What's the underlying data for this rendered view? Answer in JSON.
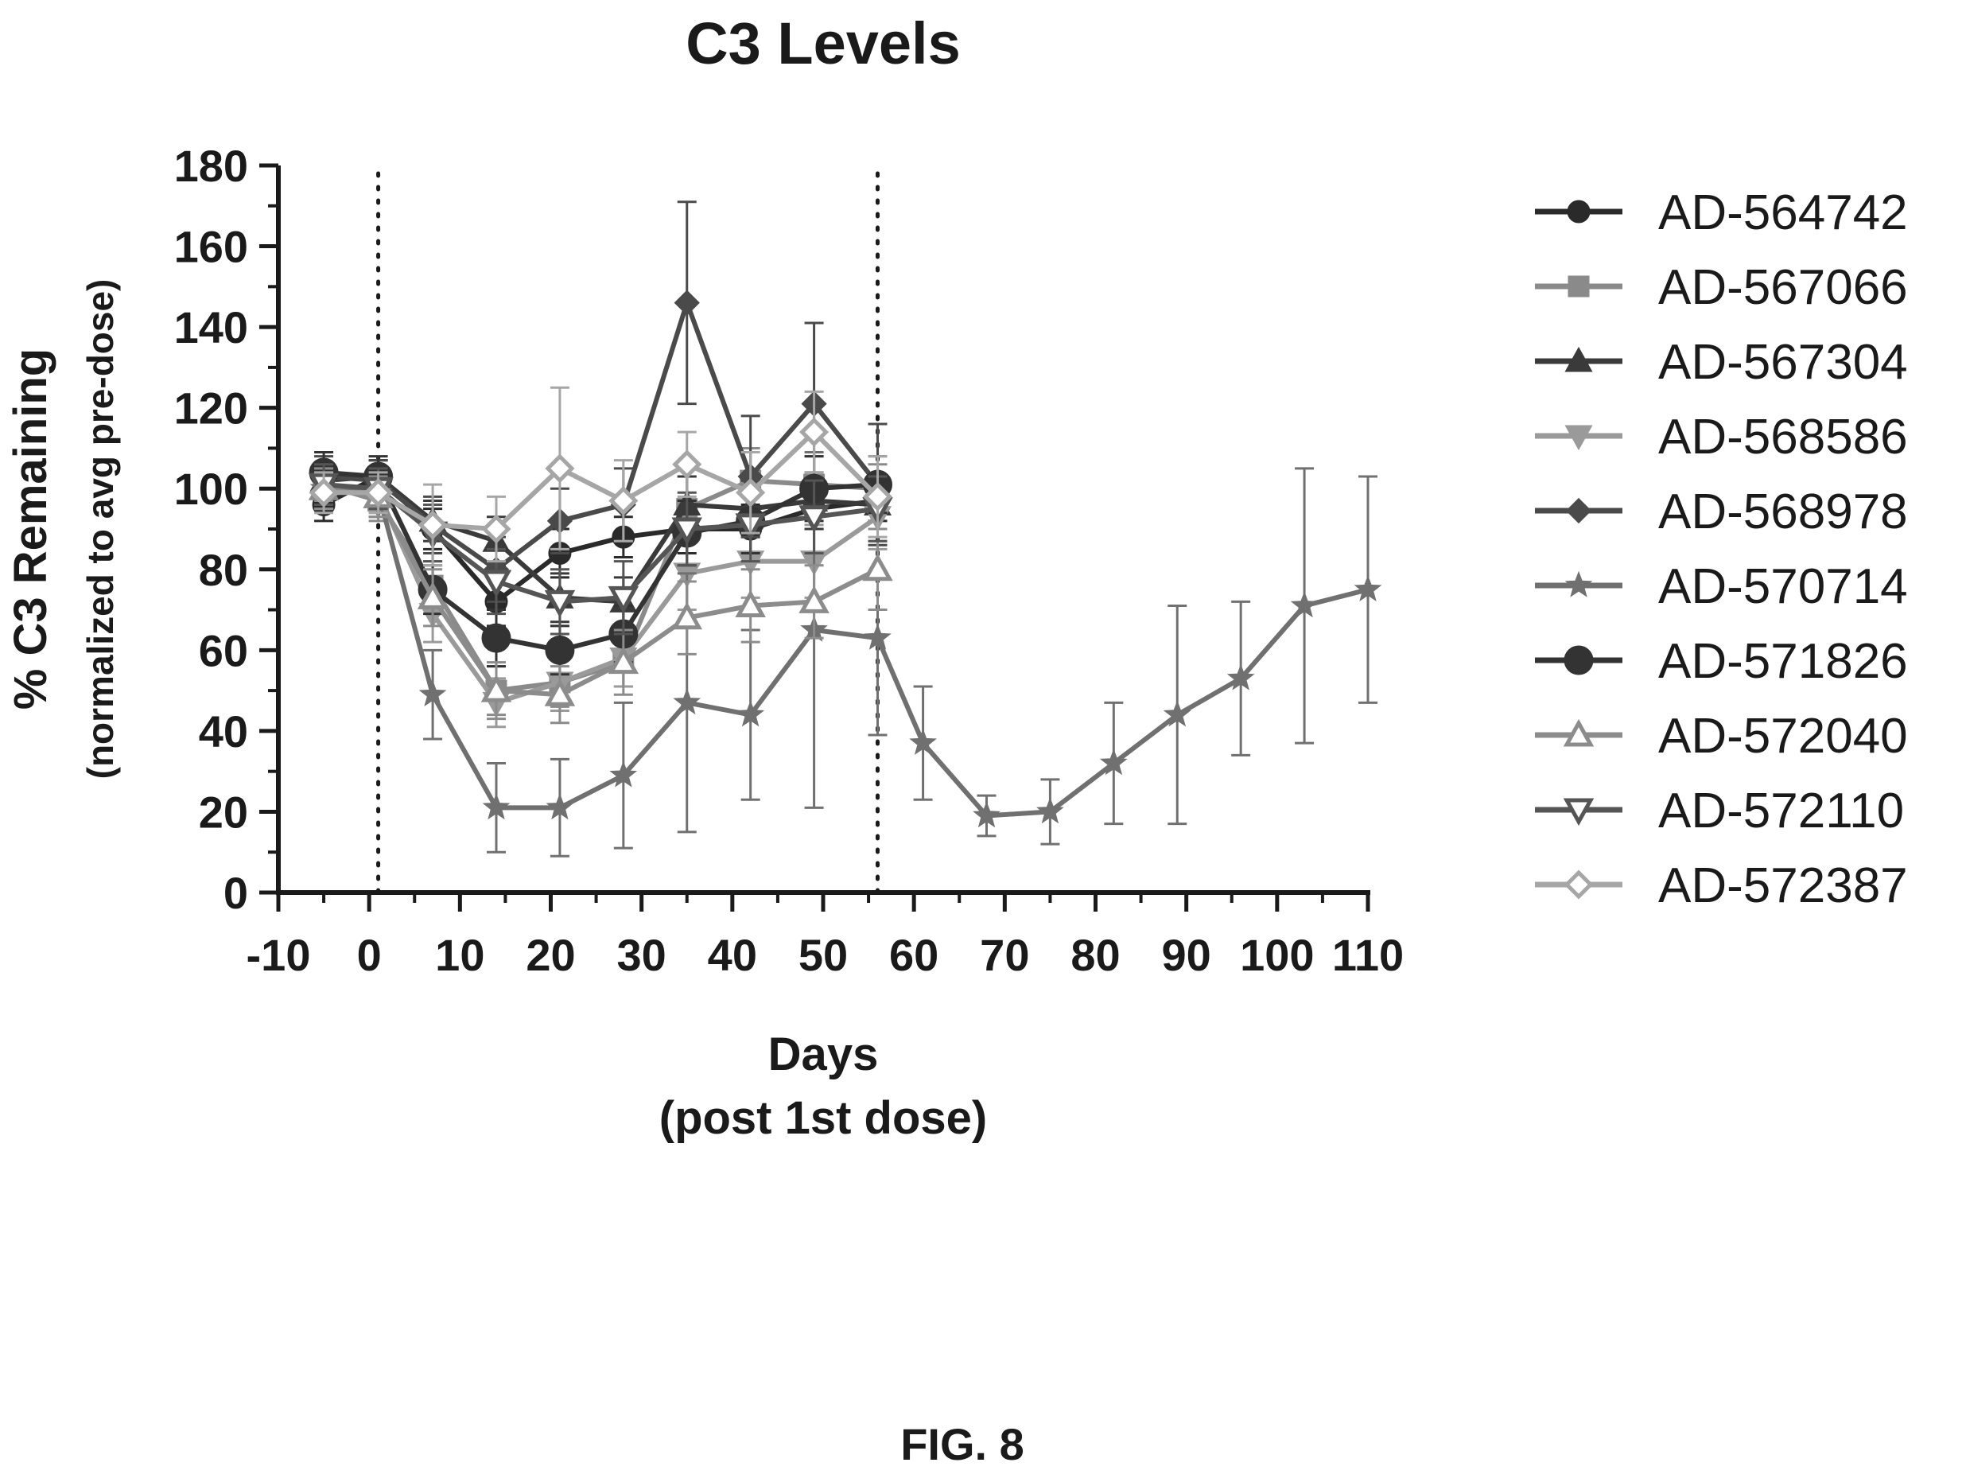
{
  "figure_label": "FIG. 8",
  "chart_data": {
    "type": "line",
    "title": "C3 Levels",
    "xlabel": "Days",
    "xlabel_sub": "(post 1st dose)",
    "ylabel": "% C3 Remaining",
    "ylabel_sub": "(normalized to avg pre-dose)",
    "xlim": [
      -10,
      110
    ],
    "ylim": [
      0,
      180
    ],
    "xticks": [
      -10,
      0,
      10,
      20,
      30,
      40,
      50,
      60,
      70,
      80,
      90,
      100,
      110
    ],
    "yticks": [
      0,
      20,
      40,
      60,
      80,
      100,
      120,
      140,
      160,
      180
    ],
    "xtick_labels": [
      "-10",
      "0",
      "10",
      "20",
      "30",
      "40",
      "50",
      "60",
      "70",
      "80",
      "90",
      "100",
      "110"
    ],
    "ytick_labels": [
      "0",
      "20",
      "40",
      "60",
      "80",
      "100",
      "120",
      "140",
      "160",
      "180"
    ],
    "dosing_lines_x": [
      1,
      56
    ],
    "legend_position": "right",
    "grid": false,
    "series": [
      {
        "name": "AD-564742",
        "marker": "circle",
        "color": "#2a2a2a",
        "x": [
          -5,
          1,
          7,
          14,
          21,
          28,
          35,
          42,
          49,
          56
        ],
        "y": [
          96,
          103,
          90,
          72,
          84,
          88,
          90,
          90,
          95,
          97
        ],
        "err": [
          4,
          4,
          5,
          6,
          6,
          5,
          6,
          6,
          5,
          5
        ]
      },
      {
        "name": "AD-567066",
        "marker": "square",
        "color": "#8a8a8a",
        "x": [
          -5,
          1,
          7,
          14,
          21,
          28,
          35,
          42,
          49,
          56
        ],
        "y": [
          101,
          97,
          76,
          50,
          52,
          57,
          95,
          102,
          101,
          100
        ],
        "err": [
          4,
          5,
          6,
          6,
          6,
          6,
          8,
          8,
          7,
          6
        ]
      },
      {
        "name": "AD-567304",
        "marker": "triangle",
        "color": "#3a3a3a",
        "x": [
          -5,
          1,
          7,
          14,
          21,
          28,
          35,
          42,
          49,
          56
        ],
        "y": [
          102,
          103,
          92,
          87,
          73,
          72,
          96,
          95,
          97,
          96
        ],
        "err": [
          4,
          4,
          5,
          6,
          6,
          6,
          7,
          7,
          7,
          6
        ]
      },
      {
        "name": "AD-568586",
        "marker": "triangle-down",
        "color": "#9a9a9a",
        "x": [
          -5,
          1,
          7,
          14,
          21,
          28,
          35,
          42,
          49,
          56
        ],
        "y": [
          100,
          99,
          69,
          47,
          52,
          58,
          79,
          82,
          82,
          93
        ],
        "err": [
          5,
          5,
          7,
          6,
          7,
          7,
          9,
          9,
          9,
          8
        ]
      },
      {
        "name": "AD-568978",
        "marker": "diamond",
        "color": "#4a4a4a",
        "x": [
          -5,
          1,
          7,
          14,
          21,
          28,
          35,
          42,
          49,
          56
        ],
        "y": [
          103,
          102,
          91,
          80,
          92,
          96,
          146,
          103,
          121,
          101
        ],
        "err": [
          5,
          5,
          7,
          8,
          8,
          9,
          25,
          15,
          20,
          15
        ]
      },
      {
        "name": "AD-570714",
        "marker": "star",
        "color": "#707070",
        "x": [
          -5,
          1,
          7,
          14,
          21,
          28,
          35,
          42,
          49,
          56,
          61,
          68,
          75,
          82,
          89,
          96,
          103,
          110
        ],
        "y": [
          100,
          99,
          49,
          21,
          21,
          29,
          47,
          44,
          65,
          63,
          37,
          19,
          20,
          32,
          44,
          53,
          71,
          75
        ],
        "err": [
          5,
          6,
          11,
          11,
          12,
          18,
          32,
          21,
          44,
          24,
          14,
          5,
          8,
          15,
          27,
          19,
          34,
          28
        ]
      },
      {
        "name": "AD-571826",
        "marker": "circle-large",
        "color": "#333333",
        "x": [
          -5,
          1,
          7,
          14,
          21,
          28,
          35,
          42,
          49,
          56
        ],
        "y": [
          104,
          103,
          75,
          63,
          60,
          64,
          89,
          92,
          100,
          101
        ],
        "err": [
          5,
          5,
          6,
          7,
          6,
          7,
          8,
          8,
          8,
          7
        ]
      },
      {
        "name": "AD-572040",
        "marker": "triangle-open",
        "color": "#8c8c8c",
        "x": [
          -5,
          1,
          7,
          14,
          21,
          28,
          35,
          42,
          49,
          56
        ],
        "y": [
          100,
          98,
          73,
          50,
          49,
          57,
          68,
          71,
          72,
          80
        ],
        "err": [
          5,
          5,
          7,
          7,
          7,
          8,
          9,
          9,
          9,
          10
        ]
      },
      {
        "name": "AD-572110",
        "marker": "triangle-down-open",
        "color": "#555555",
        "x": [
          -5,
          1,
          7,
          14,
          21,
          28,
          35,
          42,
          49,
          56
        ],
        "y": [
          101,
          100,
          89,
          77,
          72,
          73,
          90,
          91,
          93,
          95
        ],
        "err": [
          5,
          5,
          7,
          8,
          8,
          9,
          9,
          9,
          9,
          8
        ]
      },
      {
        "name": "AD-572387",
        "marker": "diamond-open",
        "color": "#a6a6a6",
        "x": [
          -5,
          1,
          7,
          14,
          21,
          28,
          35,
          42,
          49,
          56
        ],
        "y": [
          99,
          99,
          91,
          90,
          105,
          97,
          106,
          99,
          114,
          98
        ],
        "err": [
          5,
          5,
          10,
          8,
          20,
          10,
          8,
          10,
          10,
          10
        ]
      }
    ]
  }
}
